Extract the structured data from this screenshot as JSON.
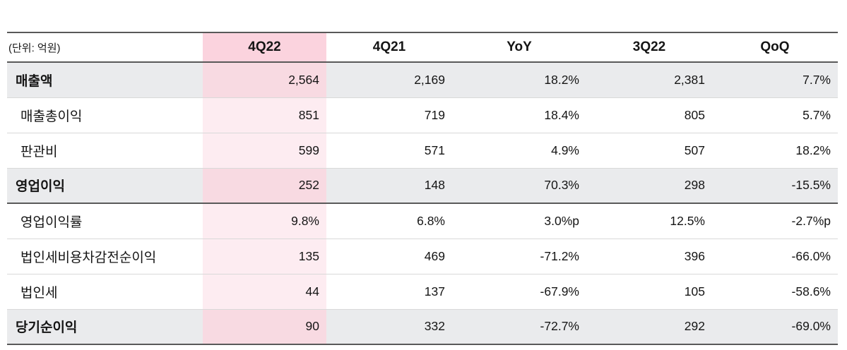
{
  "chart_data": {
    "type": "table",
    "unit_label": "(단위: 억원)",
    "columns": [
      "4Q22",
      "4Q21",
      "YoY",
      "3Q22",
      "QoQ"
    ],
    "highlight_column": "4Q22",
    "rows": [
      {
        "label": "매출액",
        "emphasis": true,
        "values": [
          "2,564",
          "2,169",
          "18.2%",
          "2,381",
          "7.7%"
        ]
      },
      {
        "label": "매출총이익",
        "emphasis": false,
        "values": [
          "851",
          "719",
          "18.4%",
          "805",
          "5.7%"
        ]
      },
      {
        "label": "판관비",
        "emphasis": false,
        "values": [
          "599",
          "571",
          "4.9%",
          "507",
          "18.2%"
        ]
      },
      {
        "label": "영업이익",
        "emphasis": true,
        "values": [
          "252",
          "148",
          "70.3%",
          "298",
          "-15.5%"
        ]
      },
      {
        "label": "영업이익률",
        "emphasis": false,
        "values": [
          "9.8%",
          "6.8%",
          "3.0%p",
          "12.5%",
          "-2.7%p"
        ]
      },
      {
        "label": "법인세비용차감전순이익",
        "emphasis": false,
        "values": [
          "135",
          "469",
          "-71.2%",
          "396",
          "-66.0%"
        ]
      },
      {
        "label": "법인세",
        "emphasis": false,
        "values": [
          "44",
          "137",
          "-67.9%",
          "105",
          "-58.6%"
        ]
      },
      {
        "label": "당기순이익",
        "emphasis": true,
        "values": [
          "90",
          "332",
          "-72.7%",
          "292",
          "-69.0%"
        ]
      }
    ]
  },
  "colors": {
    "header-pink": "#fbd3de",
    "row-pink": "#fdecf1",
    "section-pink": "#f8dae2",
    "section-gray": "#eaebed",
    "line-dark": "#595959",
    "line-light": "#d9d9d9"
  }
}
